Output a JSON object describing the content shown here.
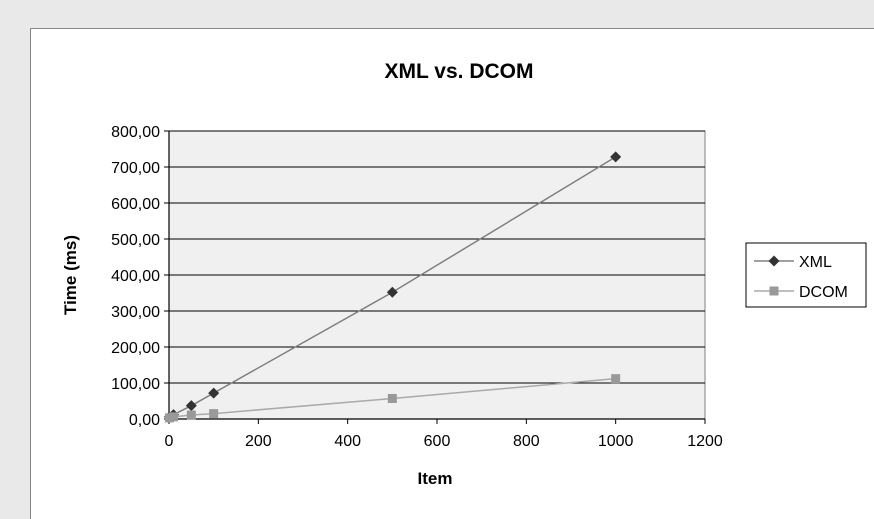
{
  "chart_data": {
    "type": "scatter",
    "title": "XML vs. DCOM",
    "xlabel": "Item",
    "ylabel": "Time (ms)",
    "xlim": [
      0,
      1200
    ],
    "ylim": [
      0,
      800
    ],
    "x_ticks": [
      0,
      200,
      400,
      600,
      800,
      1000,
      1200
    ],
    "y_ticks": [
      0,
      100,
      200,
      300,
      400,
      500,
      600,
      700,
      800
    ],
    "x_tick_labels": [
      "0",
      "200",
      "400",
      "600",
      "800",
      "1000",
      "1200"
    ],
    "y_tick_labels": [
      "0,00",
      "100,00",
      "200,00",
      "300,00",
      "400,00",
      "500,00",
      "600,00",
      "700,00",
      "800,00"
    ],
    "grid": "horizontal",
    "legend_position": "right",
    "series": [
      {
        "name": "XML",
        "marker": "diamond",
        "color": "#333333",
        "line_color": "#808080",
        "x": [
          1,
          10,
          50,
          100,
          500,
          1000
        ],
        "y": [
          6,
          12,
          37,
          72,
          352,
          728
        ]
      },
      {
        "name": "DCOM",
        "marker": "square",
        "color": "#999999",
        "line_color": "#aaaaaa",
        "x": [
          1,
          10,
          50,
          100,
          500,
          1000
        ],
        "y": [
          3,
          6,
          11,
          15,
          57,
          112
        ]
      }
    ]
  },
  "colors": {
    "page_background": "#e9e9e9",
    "plot_background": "#f0f0f0",
    "grid_line": "#000000"
  }
}
